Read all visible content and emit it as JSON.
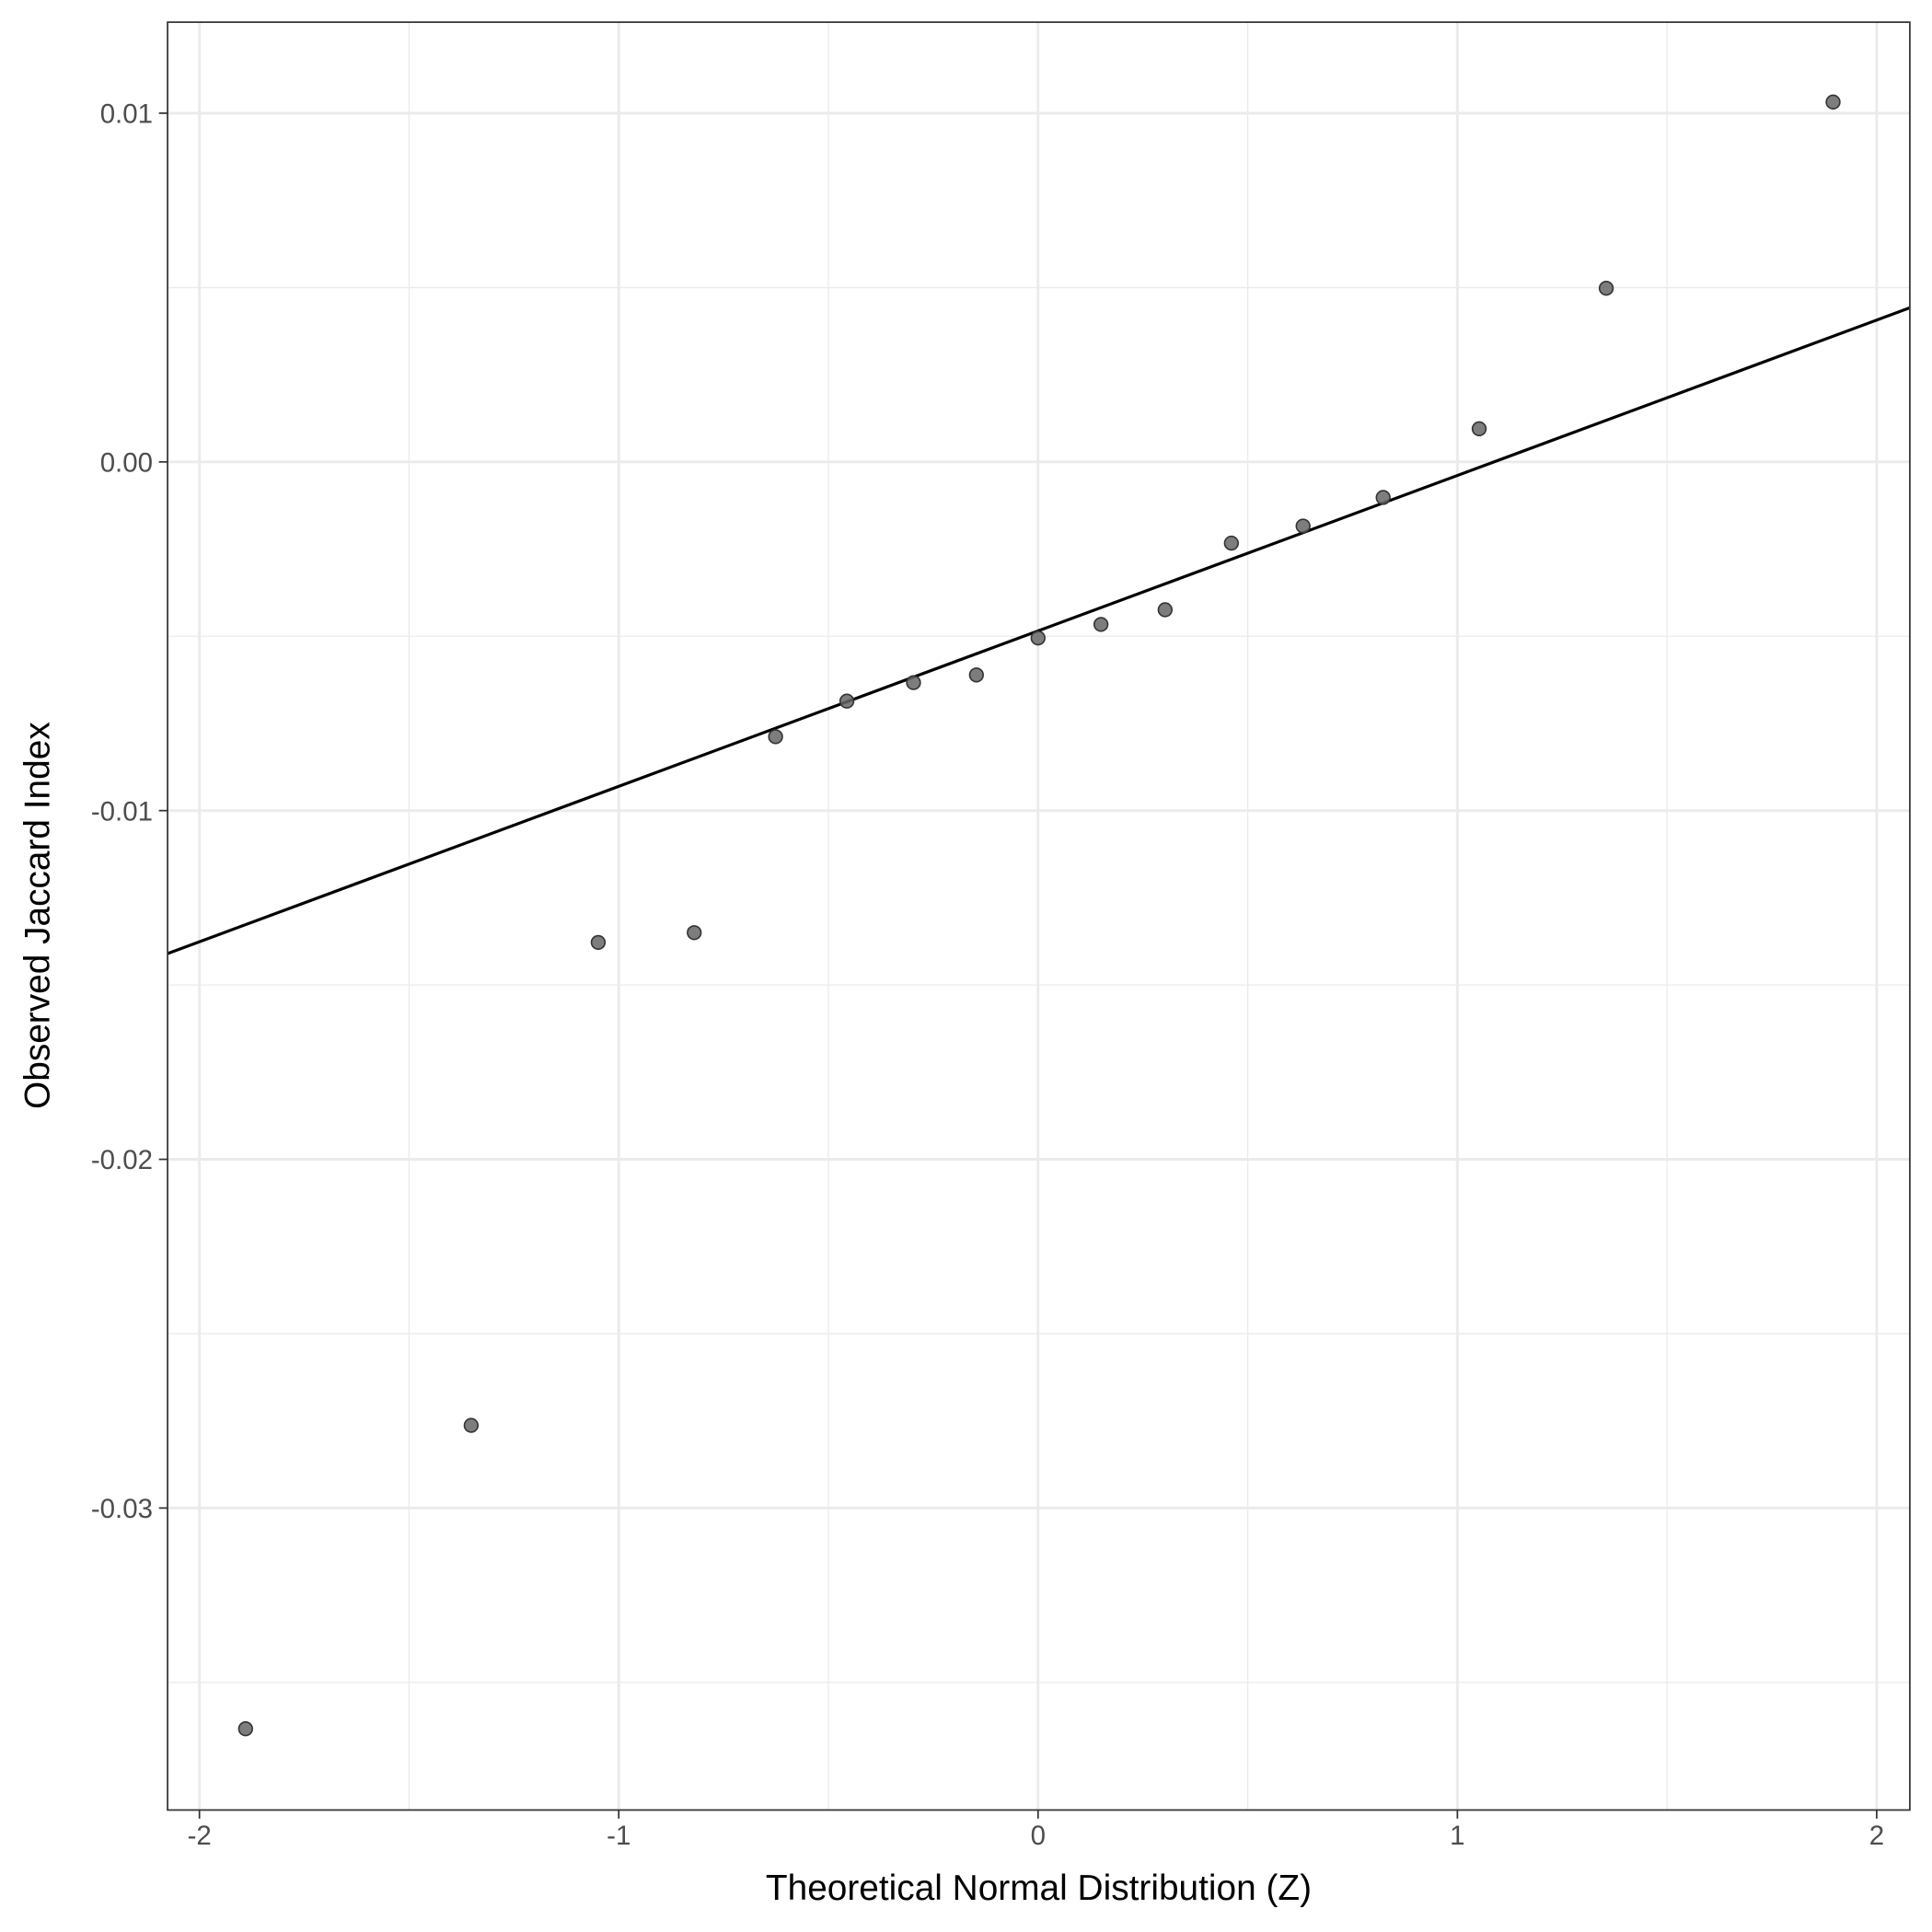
{
  "chart_data": {
    "type": "scatter",
    "x_label": "Theoretical Normal Distribution (Z)",
    "y_label": "Observed Jaccard Index",
    "x": [
      -1.89,
      -1.352,
      -1.049,
      -0.82,
      -0.626,
      -0.456,
      -0.297,
      -0.147,
      0,
      0.15,
      0.303,
      0.461,
      0.632,
      0.823,
      1.052,
      1.355,
      1.896
    ],
    "values": [
      -0.03633,
      -0.02763,
      -0.01378,
      -0.0135,
      -0.00788,
      -0.00686,
      -0.00633,
      -0.00611,
      -0.00505,
      -0.00466,
      -0.00424,
      -0.00233,
      -0.00184,
      -0.00102,
      0.00095,
      0.00498,
      0.01032
    ],
    "color": "#666666",
    "line": {
      "x": [
        -2.076,
        2.079
      ],
      "y": [
        -0.0141,
        0.00442
      ],
      "color": "#000000"
    },
    "xlim": [
      -2.076,
      2.079
    ],
    "ylim": [
      -0.03866,
      0.01261
    ],
    "xticks": [
      -2,
      -1,
      0,
      1,
      2
    ],
    "yticks": [
      {
        "value": 0.01,
        "label": "0.01"
      },
      {
        "value": 0,
        "label": "0.00"
      },
      {
        "value": -0.01,
        "label": "-0.01"
      },
      {
        "value": -0.02,
        "label": "-0.02"
      },
      {
        "value": -0.03,
        "label": "-0.03"
      }
    ],
    "grid": true
  }
}
